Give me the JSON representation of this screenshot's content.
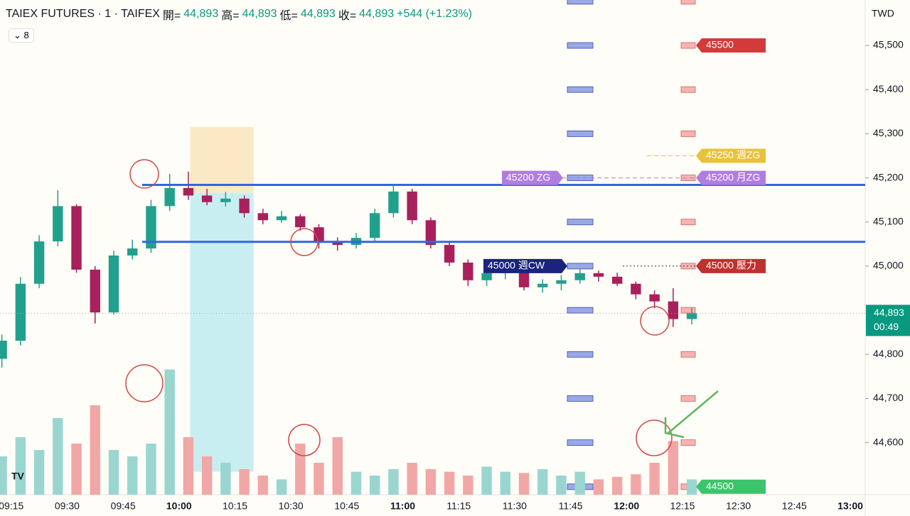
{
  "header": {
    "symbol": "TAIEX FUTURES · 1 · TAIFEX",
    "open_label": "開=",
    "open": "44,893",
    "high_label": "高=",
    "high": "44,893",
    "low_label": "低=",
    "low": "44,893",
    "close_label": "收=",
    "close": "44,893",
    "change": "+544 (+1.23%)",
    "indicator_count": "8"
  },
  "chart_data": {
    "type": "candlestick",
    "currency": "TWD",
    "x": [
      "09:10",
      "09:15",
      "09:20",
      "09:25",
      "09:30",
      "09:35",
      "09:40",
      "09:45",
      "09:50",
      "09:55",
      "10:00",
      "10:05",
      "10:10",
      "10:15",
      "10:20",
      "10:25",
      "10:30",
      "10:35",
      "10:40",
      "10:45",
      "10:50",
      "10:55",
      "11:00",
      "11:05",
      "11:10",
      "11:15",
      "11:20",
      "11:25",
      "11:30",
      "11:35",
      "11:40",
      "11:45",
      "11:50",
      "11:55",
      "12:00",
      "12:05",
      "12:10",
      "12:15"
    ],
    "open": [
      44790,
      44831,
      44960,
      45056,
      45136,
      44992,
      44895,
      45024,
      45040,
      45136,
      45177,
      45160,
      45145,
      45153,
      45120,
      45104,
      45113,
      45088,
      45056,
      45048,
      45064,
      45120,
      45169,
      45104,
      45048,
      45008,
      44968,
      44984,
      45000,
      44952,
      44960,
      44968,
      44984,
      44976,
      44960,
      44936,
      44920,
      44880
    ],
    "high": [
      44845,
      44975,
      45070,
      45172,
      45140,
      45000,
      45035,
      45060,
      45150,
      45209,
      45214,
      45175,
      45168,
      45160,
      45130,
      45125,
      45118,
      45095,
      45065,
      45075,
      45130,
      45182,
      45175,
      45110,
      45055,
      45015,
      44995,
      45010,
      45005,
      44970,
      44980,
      44995,
      44990,
      44985,
      44965,
      44945,
      44950,
      44905
    ],
    "low": [
      44770,
      44820,
      44950,
      45045,
      44985,
      44870,
      44890,
      45015,
      45030,
      45125,
      45150,
      45138,
      45135,
      45110,
      45095,
      45098,
      45080,
      45040,
      45035,
      45040,
      45055,
      45110,
      45095,
      45040,
      45000,
      44955,
      44955,
      44970,
      44945,
      44940,
      44945,
      44960,
      44965,
      44955,
      44925,
      44905,
      44862,
      44868
    ],
    "close": [
      44831,
      44960,
      45056,
      45136,
      44992,
      44895,
      45024,
      45040,
      45136,
      45177,
      45160,
      45145,
      45153,
      45120,
      45104,
      45113,
      45088,
      45056,
      45048,
      45064,
      45120,
      45169,
      45104,
      45048,
      45008,
      44968,
      44984,
      45000,
      44952,
      44960,
      44968,
      44984,
      44976,
      44960,
      44936,
      44920,
      44880,
      44893
    ],
    "volume": [
      30,
      45,
      35,
      60,
      40,
      70,
      35,
      30,
      40,
      98,
      45,
      30,
      25,
      20,
      15,
      12,
      40,
      25,
      45,
      18,
      15,
      20,
      25,
      20,
      18,
      15,
      22,
      18,
      17,
      20,
      15,
      18,
      12,
      14,
      16,
      25,
      42,
      12
    ],
    "vlim": [
      0,
      100
    ],
    "up_color": "#22a08e",
    "down_color": "#a8205c",
    "vol_up_color": "#9ad6cf",
    "vol_down_color": "#f2a7a7",
    "ylim": [
      44482,
      45603
    ],
    "yticks": [
      {
        "value": 44600,
        "label": "44,600"
      },
      {
        "value": 44700,
        "label": "44,700"
      },
      {
        "value": 44800,
        "label": "44,800"
      },
      {
        "value": 45000,
        "label": "45,000"
      },
      {
        "value": 45100,
        "label": "45,100"
      },
      {
        "value": 45200,
        "label": "45,200"
      },
      {
        "value": 45300,
        "label": "45,300"
      },
      {
        "value": 45400,
        "label": "45,400"
      },
      {
        "value": 45500,
        "label": "45,500"
      }
    ],
    "xlim": [
      "09:12",
      "13:04"
    ],
    "xticks": [
      "09:15",
      "09:30",
      "09:45",
      "10:00",
      "10:15",
      "10:30",
      "10:45",
      "11:00",
      "11:15",
      "11:30",
      "11:45",
      "12:00",
      "12:15",
      "12:30",
      "12:45",
      "13:00"
    ],
    "last_price": {
      "value": 44893,
      "label": "44,893",
      "countdown": "00:49",
      "color": "#089981"
    },
    "hlines": [
      {
        "value": 45184,
        "color": "#3366dd"
      },
      {
        "value": 45055,
        "color": "#3366dd"
      }
    ],
    "zones": [
      {
        "x": [
          "10:03",
          "10:20"
        ],
        "y": [
          45166,
          45315
        ],
        "color": "#fbe8c4"
      },
      {
        "x": [
          "10:03",
          "10:20"
        ],
        "y": [
          44534,
          45166
        ],
        "color": "#c9eef1"
      }
    ],
    "levels": [
      {
        "value": 45500,
        "label": "45500",
        "color": "#d43a3a"
      },
      {
        "value": 45250,
        "label": "45250 週ZG",
        "color": "#e8c23a"
      },
      {
        "value": 45200,
        "label": "45200 月ZG",
        "color": "#b07de0"
      },
      {
        "value": 45000,
        "label": "45000 壓力",
        "color": "#c0302e"
      },
      {
        "value": 44500,
        "label": "44500",
        "color": "#3cc46a"
      }
    ],
    "left_levels": [
      {
        "value": 45200,
        "label": "45200 ZG",
        "color": "#b07de0"
      },
      {
        "value": 45000,
        "label": "45000 週CW",
        "color": "#1a237e"
      }
    ],
    "profile": [
      45600,
      45500,
      45400,
      45300,
      45200,
      45100,
      45000,
      44900,
      44800,
      44700,
      44600,
      44500
    ],
    "profile_color": "#9aa8e6",
    "profile2": [
      45600,
      45500,
      45400,
      45300,
      45200,
      45100,
      45000,
      44900,
      44800,
      44700,
      44600,
      44500
    ],
    "profile2_color": "#f5b4b0"
  }
}
